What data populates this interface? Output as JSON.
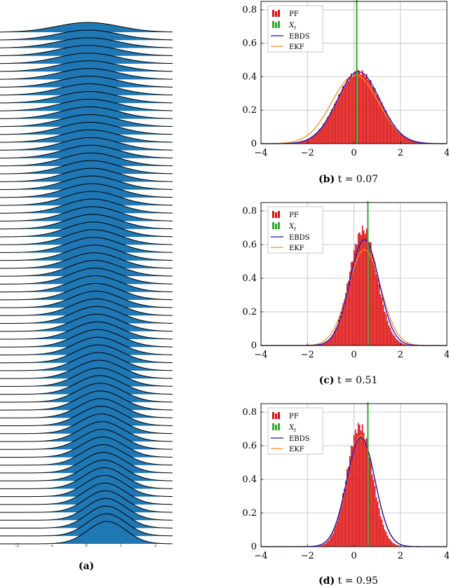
{
  "panel_a": {
    "caption_label": "(a)",
    "ridge_color": "#1f77b4",
    "line_color": "#000000",
    "x_tick_labels": [
      "-2",
      "-1",
      "0",
      "1",
      "2"
    ]
  },
  "chart_data": [
    {
      "type": "ridgeline",
      "panel": "a",
      "caption": "(a)",
      "x_range": [
        -2.5,
        2.5
      ],
      "description_count": 66,
      "fill_color": "#1f77b4"
    },
    {
      "type": "histogram-with-lines",
      "panel": "b",
      "caption_label": "(b)",
      "caption_text": "t = 0.07",
      "xlim": [
        -4,
        4
      ],
      "ylim": [
        0,
        0.85
      ],
      "xticks": [
        -4,
        -2,
        0,
        2,
        4
      ],
      "yticks": [
        0,
        0.2,
        0.4,
        0.6,
        0.8
      ],
      "grid": true,
      "legend_position": "top-left",
      "legend": [
        "PF",
        "X_t",
        "EBDS",
        "EKF"
      ],
      "pf_hist": {
        "mean": 0.2,
        "sd": 0.93,
        "peak": 0.43,
        "color": "#dd1111"
      },
      "x_t": 0.12,
      "ebds": {
        "mean": 0.2,
        "sd": 0.92,
        "peak": 0.43,
        "color": "#1111cc"
      },
      "ekf": {
        "mean": 0.05,
        "sd": 1.0,
        "peak": 0.41,
        "color": "#ff8c1a"
      },
      "xt_color": "#33aa33"
    },
    {
      "type": "histogram-with-lines",
      "panel": "c",
      "caption_label": "(c)",
      "caption_text": "t = 0.51",
      "xlim": [
        -4,
        4
      ],
      "ylim": [
        0,
        0.85
      ],
      "xticks": [
        -4,
        -2,
        0,
        2,
        4
      ],
      "yticks": [
        0,
        0.2,
        0.4,
        0.6,
        0.8
      ],
      "grid": true,
      "legend_position": "top-left",
      "legend": [
        "PF",
        "X_t",
        "EBDS",
        "EKF"
      ],
      "pf_hist": {
        "mean": 0.4,
        "sd": 0.6,
        "peak": 0.69,
        "color": "#dd1111"
      },
      "x_t": 0.6,
      "ebds": {
        "mean": 0.45,
        "sd": 0.63,
        "peak": 0.63,
        "color": "#1111cc"
      },
      "ekf": {
        "mean": 0.45,
        "sd": 0.7,
        "peak": 0.57,
        "color": "#ff8c1a"
      },
      "xt_color": "#33aa33"
    },
    {
      "type": "histogram-with-lines",
      "panel": "d",
      "caption_label": "(d)",
      "caption_text": "t = 0.95",
      "xlim": [
        -4,
        4
      ],
      "ylim": [
        0,
        0.85
      ],
      "xticks": [
        -4,
        -2,
        0,
        2,
        4
      ],
      "yticks": [
        0,
        0.2,
        0.4,
        0.6,
        0.8
      ],
      "grid": true,
      "legend_position": "top-left",
      "legend": [
        "PF",
        "X_t",
        "EBDS",
        "EKF"
      ],
      "pf_hist": {
        "mean": 0.25,
        "sd": 0.55,
        "peak": 0.72,
        "color": "#dd1111"
      },
      "x_t": 0.6,
      "ebds": {
        "mean": 0.3,
        "sd": 0.61,
        "peak": 0.65,
        "color": "#1111cc"
      },
      "ekf": {
        "mean": 0.3,
        "sd": 0.6,
        "peak": 0.66,
        "color": "#ff8c1a"
      },
      "xt_color": "#33aa33"
    }
  ]
}
